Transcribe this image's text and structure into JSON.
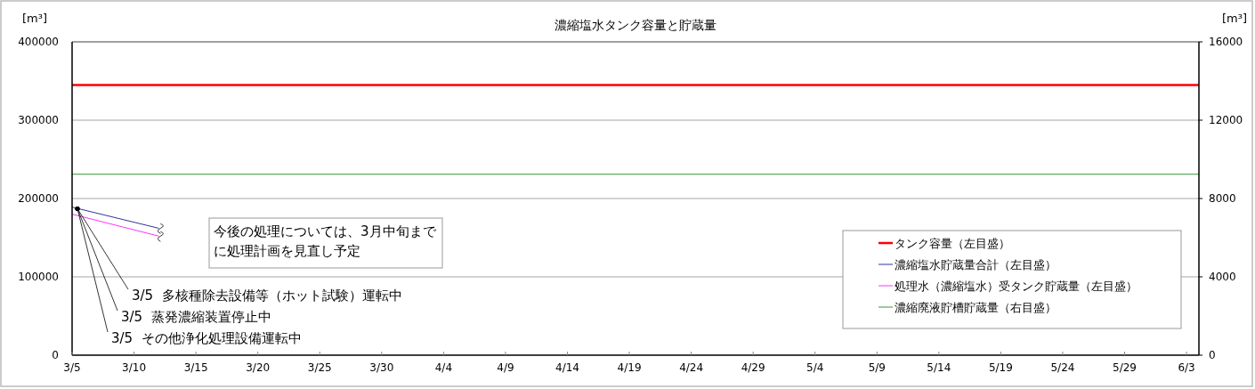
{
  "chart_data": {
    "type": "line",
    "title": "濃縮塩水タンク容量と貯蔵量",
    "ylabel": "[m³]",
    "y2label": "[m³]",
    "xlim": [
      "--03-05",
      "--06-04"
    ],
    "xticks": [
      {
        "value": "--03-05",
        "label": "3/5"
      },
      {
        "value": "--03-10",
        "label": "3/10"
      },
      {
        "value": "--03-15",
        "label": "3/15"
      },
      {
        "value": "--03-20",
        "label": "3/20"
      },
      {
        "value": "--03-25",
        "label": "3/25"
      },
      {
        "value": "--03-30",
        "label": "3/30"
      },
      {
        "value": "--04-04",
        "label": "4/4"
      },
      {
        "value": "--04-09",
        "label": "4/9"
      },
      {
        "value": "--04-14",
        "label": "4/14"
      },
      {
        "value": "--04-19",
        "label": "4/19"
      },
      {
        "value": "--04-24",
        "label": "4/24"
      },
      {
        "value": "--04-29",
        "label": "4/29"
      },
      {
        "value": "--05-04",
        "label": "5/4"
      },
      {
        "value": "--05-09",
        "label": "5/9"
      },
      {
        "value": "--05-14",
        "label": "5/14"
      },
      {
        "value": "--05-19",
        "label": "5/19"
      },
      {
        "value": "--05-24",
        "label": "5/24"
      },
      {
        "value": "--05-29",
        "label": "5/29"
      },
      {
        "value": "--06-03",
        "label": "6/3"
      }
    ],
    "ylim": [
      0,
      400000
    ],
    "yticks": [
      0,
      100000,
      200000,
      300000,
      400000
    ],
    "y2lim": [
      0,
      16000
    ],
    "y2ticks": [
      0,
      4000,
      8000,
      12000,
      16000
    ],
    "grid": "y",
    "legend": "bottom right",
    "line_style": "solid",
    "marker": "none",
    "series": [
      {
        "name": "タンク容量（左目盛）",
        "color": "#ff0000",
        "x": [
          "--03-05",
          "--06-04"
        ],
        "values": [
          345000,
          345000
        ]
      },
      {
        "name": "濃縮塩水貯蔵量合計（左目盛）",
        "color": "#333399",
        "x": [
          "--03-05",
          "--03-12"
        ],
        "values": [
          189000,
          162000
        ]
      },
      {
        "name": "処理水（濃縮塩水）受タンク貯蔵量（左目盛）",
        "color": "#ff33ff",
        "x": [
          "--03-05",
          "--03-12"
        ],
        "values": [
          180000,
          152000
        ]
      },
      {
        "name": "濃縮廃液貯槽貯蔵量（右目盛）",
        "color": "#339933",
        "axis": "y2",
        "x": [
          "--03-05",
          "--06-04"
        ],
        "values": [
          9240,
          9240
        ]
      }
    ],
    "annotations": [
      {
        "text": "3/5  多核種除去設備等（ホット試験）運転中",
        "x": "--03-05",
        "y": 187000
      },
      {
        "text": "3/5  蒸発濃縮装置停止中",
        "x": "--03-05",
        "y": 187000
      },
      {
        "text": "3/5  その他浄化処理設備運転中",
        "x": "--03-05",
        "y": 187000
      },
      "今後の処理については、3月中旬までに処理計画を見直し予定"
    ]
  }
}
